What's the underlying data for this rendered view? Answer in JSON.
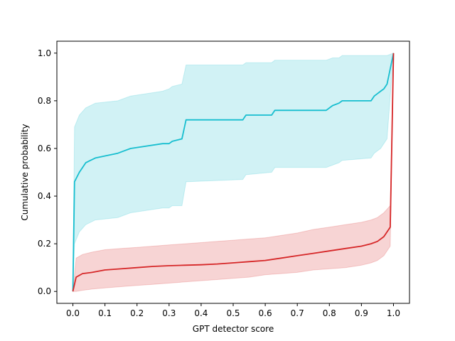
{
  "chart_data": {
    "type": "line",
    "title": "",
    "xlabel": "GPT detector score",
    "ylabel": "Cumulative probability",
    "xlim": [
      -0.05,
      1.05
    ],
    "ylim": [
      -0.05,
      1.05
    ],
    "xticks": [
      0.0,
      0.1,
      0.2,
      0.3,
      0.4,
      0.5,
      0.6,
      0.7,
      0.8,
      0.9,
      1.0
    ],
    "xtick_labels": [
      "0.0",
      "0.1",
      "0.2",
      "0.3",
      "0.4",
      "0.5",
      "0.6",
      "0.7",
      "0.8",
      "0.9",
      "1.0"
    ],
    "yticks": [
      0.0,
      0.2,
      0.4,
      0.6,
      0.8,
      1.0
    ],
    "ytick_labels": [
      "0.0",
      "0.2",
      "0.4",
      "0.6",
      "0.8",
      "1.0"
    ],
    "grid": false,
    "legend": "none",
    "series": [
      {
        "color": "#17becf",
        "band_color": "#17becf",
        "x": [
          0.0,
          0.005,
          0.02,
          0.04,
          0.07,
          0.14,
          0.16,
          0.18,
          0.28,
          0.3,
          0.31,
          0.34,
          0.353,
          0.53,
          0.54,
          0.62,
          0.63,
          0.79,
          0.81,
          0.83,
          0.84,
          0.93,
          0.94,
          0.95,
          0.96,
          0.97,
          0.98,
          1.0
        ],
        "y": [
          0.0,
          0.46,
          0.5,
          0.54,
          0.56,
          0.58,
          0.59,
          0.6,
          0.62,
          0.62,
          0.63,
          0.64,
          0.72,
          0.72,
          0.74,
          0.74,
          0.76,
          0.76,
          0.78,
          0.79,
          0.8,
          0.8,
          0.82,
          0.83,
          0.84,
          0.85,
          0.87,
          1.0
        ],
        "lower": [
          0.0,
          0.2,
          0.25,
          0.28,
          0.3,
          0.31,
          0.32,
          0.33,
          0.35,
          0.35,
          0.36,
          0.36,
          0.46,
          0.47,
          0.49,
          0.5,
          0.52,
          0.52,
          0.53,
          0.54,
          0.55,
          0.56,
          0.58,
          0.59,
          0.6,
          0.62,
          0.64,
          1.0
        ],
        "upper": [
          0.0,
          0.69,
          0.74,
          0.77,
          0.79,
          0.8,
          0.81,
          0.82,
          0.84,
          0.85,
          0.86,
          0.87,
          0.95,
          0.95,
          0.96,
          0.96,
          0.97,
          0.97,
          0.98,
          0.98,
          0.99,
          0.99,
          0.99,
          0.99,
          0.99,
          0.99,
          0.99,
          1.0
        ]
      },
      {
        "color": "#d62728",
        "band_color": "#d62728",
        "x": [
          0.0,
          0.01,
          0.03,
          0.06,
          0.1,
          0.15,
          0.2,
          0.25,
          0.3,
          0.35,
          0.4,
          0.45,
          0.5,
          0.55,
          0.6,
          0.65,
          0.7,
          0.75,
          0.8,
          0.85,
          0.9,
          0.93,
          0.95,
          0.97,
          0.99,
          1.0
        ],
        "y": [
          0.0,
          0.06,
          0.075,
          0.08,
          0.09,
          0.095,
          0.1,
          0.105,
          0.108,
          0.11,
          0.112,
          0.115,
          0.12,
          0.125,
          0.13,
          0.14,
          0.15,
          0.16,
          0.17,
          0.18,
          0.19,
          0.2,
          0.21,
          0.23,
          0.27,
          1.0
        ],
        "lower": [
          0.0,
          0.0,
          0.005,
          0.01,
          0.015,
          0.02,
          0.025,
          0.03,
          0.035,
          0.04,
          0.045,
          0.05,
          0.055,
          0.06,
          0.07,
          0.075,
          0.08,
          0.09,
          0.095,
          0.1,
          0.11,
          0.12,
          0.13,
          0.15,
          0.19,
          1.0
        ],
        "upper": [
          0.0,
          0.14,
          0.155,
          0.165,
          0.175,
          0.18,
          0.185,
          0.19,
          0.195,
          0.2,
          0.205,
          0.21,
          0.215,
          0.22,
          0.225,
          0.235,
          0.245,
          0.26,
          0.27,
          0.28,
          0.29,
          0.3,
          0.31,
          0.33,
          0.36,
          1.0
        ]
      }
    ]
  }
}
